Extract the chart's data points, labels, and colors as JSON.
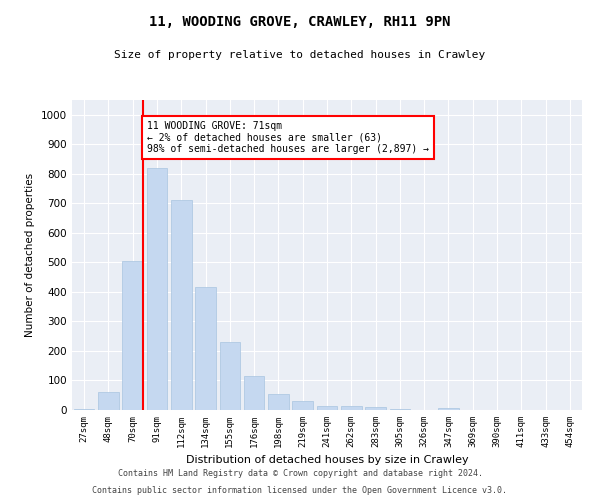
{
  "title1": "11, WOODING GROVE, CRAWLEY, RH11 9PN",
  "title2": "Size of property relative to detached houses in Crawley",
  "xlabel": "Distribution of detached houses by size in Crawley",
  "ylabel": "Number of detached properties",
  "categories": [
    "27sqm",
    "48sqm",
    "70sqm",
    "91sqm",
    "112sqm",
    "134sqm",
    "155sqm",
    "176sqm",
    "198sqm",
    "219sqm",
    "241sqm",
    "262sqm",
    "283sqm",
    "305sqm",
    "326sqm",
    "347sqm",
    "369sqm",
    "390sqm",
    "411sqm",
    "433sqm",
    "454sqm"
  ],
  "values": [
    5,
    60,
    505,
    820,
    710,
    415,
    230,
    115,
    55,
    30,
    12,
    12,
    10,
    5,
    0,
    8,
    0,
    0,
    0,
    0,
    0
  ],
  "bar_color": "#c5d8f0",
  "bar_edge_color": "#a8c4e0",
  "red_line_index": 2,
  "annotation_line1": "11 WOODING GROVE: 71sqm",
  "annotation_line2": "← 2% of detached houses are smaller (63)",
  "annotation_line3": "98% of semi-detached houses are larger (2,897) →",
  "annotation_box_color": "white",
  "annotation_box_edge_color": "red",
  "ylim": [
    0,
    1050
  ],
  "yticks": [
    0,
    100,
    200,
    300,
    400,
    500,
    600,
    700,
    800,
    900,
    1000
  ],
  "background_color": "#eaeef5",
  "footer1": "Contains HM Land Registry data © Crown copyright and database right 2024.",
  "footer2": "Contains public sector information licensed under the Open Government Licence v3.0."
}
